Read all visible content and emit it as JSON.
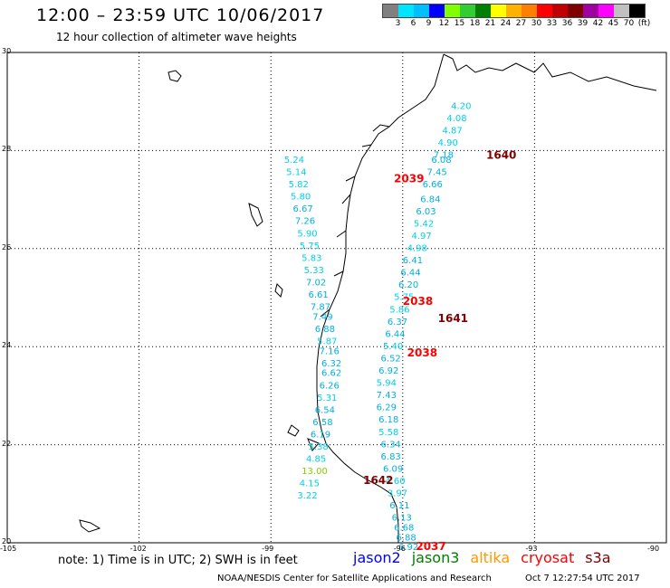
{
  "header": {
    "title": "12:00 – 23:59 UTC 10/06/2017",
    "subtitle": "12 hour collection of altimeter wave heights"
  },
  "legend": {
    "colors": [
      "#808080",
      "#00e5ff",
      "#00bfff",
      "#0000ff",
      "#7fff00",
      "#32cd32",
      "#008000",
      "#ffff00",
      "#ffb000",
      "#ff8000",
      "#ff0000",
      "#c00000",
      "#800000",
      "#a000a0",
      "#ff00ff",
      "#c0c0c0",
      "#000000"
    ],
    "labels": [
      "3",
      "6",
      "9",
      "12",
      "15",
      "18",
      "21",
      "24",
      "27",
      "30",
      "33",
      "36",
      "39",
      "42",
      "45",
      "70",
      "(ft)"
    ]
  },
  "axes": {
    "y_labels": [
      "30",
      "28",
      "26",
      "24",
      "22",
      "20"
    ],
    "x_labels": [
      "-105",
      "-102",
      "-99",
      "-96",
      "-93",
      "-90"
    ]
  },
  "chart_data": {
    "type": "scatter",
    "lon_range": [
      -105,
      -90
    ],
    "lat_range": [
      20,
      30
    ],
    "points": [
      {
        "lon": -94.9,
        "lat": 28.85,
        "v": "4.20"
      },
      {
        "lon": -95.0,
        "lat": 28.6,
        "v": "4.08"
      },
      {
        "lon": -95.1,
        "lat": 28.35,
        "v": "4.87"
      },
      {
        "lon": -95.2,
        "lat": 28.1,
        "v": "4.90"
      },
      {
        "lon": -95.3,
        "lat": 27.85,
        "v": "7.18"
      },
      {
        "lon": -95.35,
        "lat": 27.75,
        "v": "6.08"
      },
      {
        "lon": -95.45,
        "lat": 27.5,
        "v": "7.45"
      },
      {
        "lon": -95.55,
        "lat": 27.25,
        "v": "6.66"
      },
      {
        "lon": -95.6,
        "lat": 26.95,
        "v": "6.84"
      },
      {
        "lon": -95.7,
        "lat": 26.7,
        "v": "6.03"
      },
      {
        "lon": -95.75,
        "lat": 26.45,
        "v": "5.42"
      },
      {
        "lon": -95.8,
        "lat": 26.2,
        "v": "4.97"
      },
      {
        "lon": -95.9,
        "lat": 25.95,
        "v": "4.98"
      },
      {
        "lon": -96.0,
        "lat": 25.7,
        "v": "6.41"
      },
      {
        "lon": -96.05,
        "lat": 25.45,
        "v": "6.44"
      },
      {
        "lon": -96.1,
        "lat": 25.2,
        "v": "6.20"
      },
      {
        "lon": -96.2,
        "lat": 24.95,
        "v": "5.75"
      },
      {
        "lon": -96.3,
        "lat": 24.7,
        "v": "5.86"
      },
      {
        "lon": -96.35,
        "lat": 24.45,
        "v": "6.37"
      },
      {
        "lon": -96.4,
        "lat": 24.2,
        "v": "6.44"
      },
      {
        "lon": -96.45,
        "lat": 23.95,
        "v": "5.40"
      },
      {
        "lon": -96.5,
        "lat": 23.7,
        "v": "6.52"
      },
      {
        "lon": -96.55,
        "lat": 23.45,
        "v": "6.92"
      },
      {
        "lon": -96.6,
        "lat": 23.2,
        "v": "5.94"
      },
      {
        "lon": -96.6,
        "lat": 22.95,
        "v": "7.43"
      },
      {
        "lon": -96.6,
        "lat": 22.7,
        "v": "6.29"
      },
      {
        "lon": -96.55,
        "lat": 22.45,
        "v": "6.18"
      },
      {
        "lon": -96.55,
        "lat": 22.2,
        "v": "5.58"
      },
      {
        "lon": -96.5,
        "lat": 21.95,
        "v": "6.34"
      },
      {
        "lon": -96.5,
        "lat": 21.7,
        "v": "6.83"
      },
      {
        "lon": -96.45,
        "lat": 21.45,
        "v": "6.09"
      },
      {
        "lon": -96.4,
        "lat": 21.2,
        "v": "4.60"
      },
      {
        "lon": -96.35,
        "lat": 20.95,
        "v": "3.97"
      },
      {
        "lon": -96.3,
        "lat": 20.7,
        "v": "6.11"
      },
      {
        "lon": -96.25,
        "lat": 20.45,
        "v": "6.13"
      },
      {
        "lon": -96.2,
        "lat": 20.25,
        "v": "6.68"
      },
      {
        "lon": -96.15,
        "lat": 20.05,
        "v": "6.88"
      },
      {
        "lon": -96.1,
        "lat": 19.85,
        "v": "6.92"
      },
      {
        "lon": -98.7,
        "lat": 27.75,
        "v": "5.24"
      },
      {
        "lon": -98.65,
        "lat": 27.5,
        "v": "5.14"
      },
      {
        "lon": -98.6,
        "lat": 27.25,
        "v": "5.82"
      },
      {
        "lon": -98.55,
        "lat": 27.0,
        "v": "5.80"
      },
      {
        "lon": -98.5,
        "lat": 26.75,
        "v": "6.67"
      },
      {
        "lon": -98.45,
        "lat": 26.5,
        "v": "7.26"
      },
      {
        "lon": -98.4,
        "lat": 26.25,
        "v": "5.90"
      },
      {
        "lon": -98.35,
        "lat": 26.0,
        "v": "5.75"
      },
      {
        "lon": -98.3,
        "lat": 25.75,
        "v": "5.83"
      },
      {
        "lon": -98.25,
        "lat": 25.5,
        "v": "5.33"
      },
      {
        "lon": -98.2,
        "lat": 25.25,
        "v": "7.02"
      },
      {
        "lon": -98.15,
        "lat": 25.0,
        "v": "6.61"
      },
      {
        "lon": -98.1,
        "lat": 24.75,
        "v": "7.87"
      },
      {
        "lon": -98.05,
        "lat": 24.55,
        "v": "7.49"
      },
      {
        "lon": -98.0,
        "lat": 24.3,
        "v": "6.88"
      },
      {
        "lon": -97.95,
        "lat": 24.05,
        "v": "5.87"
      },
      {
        "lon": -97.9,
        "lat": 23.85,
        "v": "7.16"
      },
      {
        "lon": -97.85,
        "lat": 23.6,
        "v": "6.32"
      },
      {
        "lon": -97.85,
        "lat": 23.4,
        "v": "6.62"
      },
      {
        "lon": -97.9,
        "lat": 23.15,
        "v": "6.26"
      },
      {
        "lon": -97.95,
        "lat": 22.9,
        "v": "5.31"
      },
      {
        "lon": -98.0,
        "lat": 22.65,
        "v": "6.54"
      },
      {
        "lon": -98.05,
        "lat": 22.4,
        "v": "6.58"
      },
      {
        "lon": -98.1,
        "lat": 22.15,
        "v": "6.19"
      },
      {
        "lon": -98.15,
        "lat": 21.9,
        "v": "5.38"
      },
      {
        "lon": -98.2,
        "lat": 21.65,
        "v": "4.85"
      },
      {
        "lon": -98.3,
        "lat": 21.4,
        "v": "13.00"
      },
      {
        "lon": -98.35,
        "lat": 21.15,
        "v": "4.15"
      },
      {
        "lon": -98.4,
        "lat": 20.9,
        "v": "3.22"
      }
    ],
    "time_labels": [
      {
        "text": "1640",
        "lon": -94.1,
        "lat": 27.83,
        "color": "#800000"
      },
      {
        "text": "2039",
        "lon": -96.2,
        "lat": 27.35,
        "color": "#ff0000"
      },
      {
        "text": "2038",
        "lon": -96.0,
        "lat": 24.85,
        "color": "#ff0000"
      },
      {
        "text": "1641",
        "lon": -95.2,
        "lat": 24.5,
        "color": "#800000"
      },
      {
        "text": "2038",
        "lon": -95.9,
        "lat": 23.8,
        "color": "#ff0000"
      },
      {
        "text": "1642",
        "lon": -96.9,
        "lat": 21.2,
        "color": "#800000"
      },
      {
        "text": "2037",
        "lon": -95.7,
        "lat": 19.85,
        "color": "#ff0000"
      }
    ]
  },
  "footer": {
    "note": "note: 1) Time is in UTC; 2) SWH is in feet",
    "satellites": [
      {
        "name": "jason2",
        "color": "#0000ff"
      },
      {
        "name": "jason3",
        "color": "#008000"
      },
      {
        "name": "altika",
        "color": "#ff9900"
      },
      {
        "name": "cryosat",
        "color": "#ff0000"
      },
      {
        "name": "s3a",
        "color": "#800000"
      }
    ],
    "credit": "NOAA/NESDIS Center for Satellite Applications and Research",
    "timestamp": "Oct  7 12:27:54 UTC 2017"
  }
}
